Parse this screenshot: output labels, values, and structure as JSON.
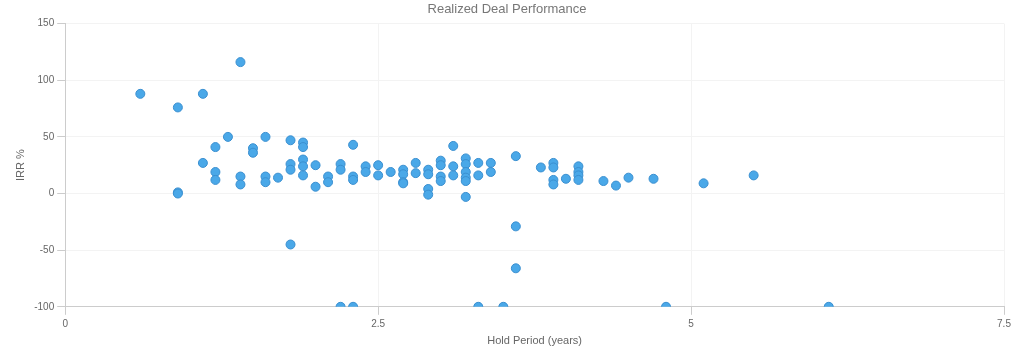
{
  "chart_data": {
    "type": "scatter",
    "title": "Realized Deal Performance",
    "x_label": "Hold Period (years)",
    "y_label": "IRR %",
    "x": [
      0.6,
      0.9,
      0.9,
      0.9,
      1.1,
      1.1,
      1.2,
      1.2,
      1.2,
      1.3,
      1.4,
      1.4,
      1.4,
      1.5,
      1.5,
      1.6,
      1.6,
      1.6,
      1.7,
      1.8,
      1.8,
      1.8,
      1.8,
      1.9,
      1.9,
      1.9,
      1.9,
      1.9,
      2.0,
      2.0,
      2.1,
      2.1,
      2.2,
      2.2,
      2.2,
      2.3,
      2.3,
      2.3,
      2.3,
      2.4,
      2.4,
      2.5,
      2.5,
      2.6,
      2.7,
      2.7,
      2.7,
      2.7,
      2.8,
      2.8,
      2.9,
      2.9,
      2.9,
      2.9,
      3.0,
      3.0,
      3.0,
      3.0,
      3.1,
      3.1,
      3.1,
      3.2,
      3.2,
      3.2,
      3.2,
      3.2,
      3.2,
      3.3,
      3.3,
      3.3,
      3.4,
      3.4,
      3.5,
      3.6,
      3.6,
      3.6,
      3.8,
      3.9,
      3.9,
      3.9,
      3.9,
      4.0,
      4.1,
      4.1,
      4.1,
      4.1,
      4.3,
      4.4,
      4.5,
      4.7,
      4.8,
      5.1,
      5.5,
      6.1
    ],
    "values": [
      88,
      76,
      1,
      0,
      88,
      27,
      41,
      19,
      12,
      50,
      116,
      15,
      8,
      40,
      36,
      50,
      15,
      10,
      14,
      47,
      26,
      21,
      -45,
      45,
      41,
      30,
      24,
      16,
      25,
      6,
      15,
      10,
      26,
      21,
      -100,
      43,
      15,
      12,
      -100,
      24,
      19,
      25,
      16,
      19,
      21,
      17,
      10,
      9,
      27,
      18,
      21,
      17,
      4,
      -1,
      29,
      25,
      15,
      11,
      42,
      24,
      16,
      31,
      26,
      19,
      14,
      11,
      -3,
      27,
      16,
      -100,
      27,
      19,
      -100,
      33,
      -29,
      -66,
      23,
      27,
      23,
      12,
      8,
      13,
      24,
      19,
      16,
      12,
      11,
      7,
      14,
      13,
      -100,
      9,
      16,
      -100
    ],
    "color": "#4aa8e8",
    "xlim": [
      0,
      7.5
    ],
    "ylim": [
      -100,
      150
    ],
    "xticks": [
      0,
      2.5,
      5,
      7.5
    ],
    "yticks": [
      -100,
      -50,
      0,
      50,
      100,
      150
    ],
    "grid": true
  }
}
